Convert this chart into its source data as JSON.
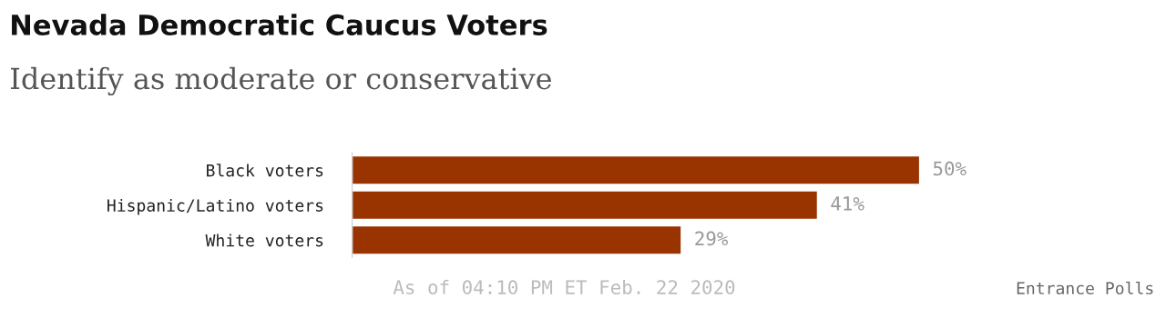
{
  "chart_data": {
    "type": "bar",
    "orientation": "horizontal",
    "title": "Nevada Democratic Caucus Voters",
    "subtitle": "Identify as moderate or conservative",
    "categories": [
      "Black voters",
      "Hispanic/Latino voters",
      "White voters"
    ],
    "values": [
      50,
      41,
      29
    ],
    "color": "#993300",
    "data_labels": true,
    "value_labels": [
      "50%",
      "41%",
      "29%"
    ],
    "annotations": [
      "As of 04:10 PM ET Feb. 22 2020",
      "Entrance Polls"
    ]
  }
}
